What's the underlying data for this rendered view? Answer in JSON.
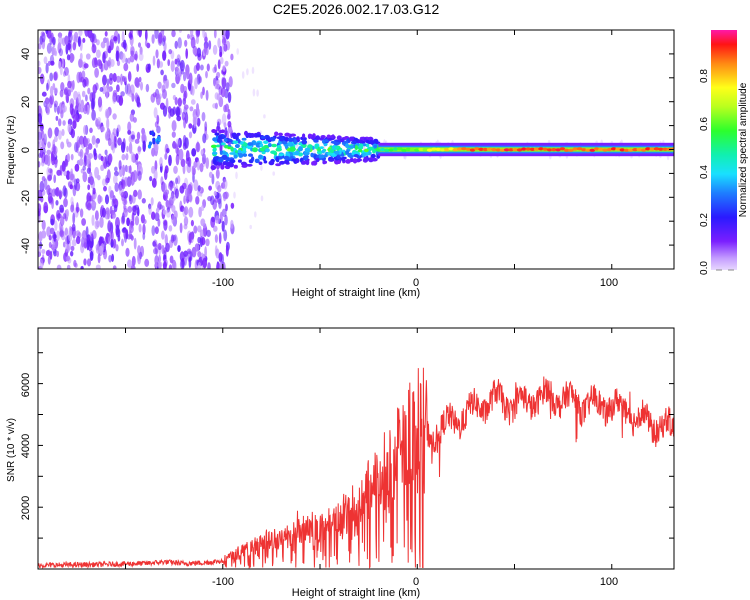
{
  "title": "C2E5.2026.002.17.03.G12",
  "chart_data": [
    {
      "type": "heatmap",
      "title": "C2E5.2026.002.17.03.G12",
      "xlabel": "Height of straight line (km)",
      "ylabel": "Frequency (Hz)",
      "xlim": [
        -195,
        132
      ],
      "ylim": [
        -50,
        50
      ],
      "x_ticks": [
        "-100",
        "0",
        "100"
      ],
      "y_ticks": [
        "-40",
        "-20",
        "0",
        "20",
        "40"
      ],
      "colorbar": {
        "label": "Normalized spectral amplitude",
        "range": [
          0,
          1
        ],
        "ticks": [
          "0.0",
          "0.2",
          "0.4",
          "0.6",
          "0.8"
        ]
      },
      "regions": [
        {
          "name": "diffuse noise",
          "x_range": [
            -195,
            -95
          ],
          "freq_spread_hz": 50,
          "amplitude": 0.1
        },
        {
          "name": "isolated tone",
          "x": -135,
          "freq_hz": 4,
          "amplitude": 0.4
        },
        {
          "name": "emerging signal",
          "x_range": [
            -105,
            -20
          ],
          "freq_spread_hz": 8,
          "amplitude": 0.45
        },
        {
          "name": "strong tone",
          "x_range": [
            -20,
            132
          ],
          "freq_hz": 0,
          "amplitude": 0.9
        }
      ]
    },
    {
      "type": "line",
      "xlabel": "Height of straight line (km)",
      "ylabel": "SNR (10 * v/v)",
      "xlim": [
        -195,
        132
      ],
      "ylim": [
        0,
        7800
      ],
      "x_ticks": [
        "-100",
        "0",
        "100"
      ],
      "y_ticks": [
        "2000",
        "4000",
        "6000"
      ],
      "color": "#ee3333",
      "series": [
        {
          "name": "SNR",
          "x": [
            -195,
            -180,
            -160,
            -140,
            -130,
            -120,
            -110,
            -100,
            -90,
            -80,
            -70,
            -60,
            -50,
            -40,
            -30,
            -20,
            -10,
            0,
            10,
            20,
            30,
            40,
            50,
            60,
            70,
            80,
            90,
            100,
            110,
            120,
            132
          ],
          "values": [
            120,
            130,
            150,
            180,
            230,
            180,
            200,
            260,
            500,
            700,
            850,
            1000,
            1150,
            1400,
            1900,
            2500,
            3300,
            4000,
            4500,
            4800,
            5200,
            5500,
            5300,
            5500,
            5600,
            5400,
            5300,
            5300,
            5000,
            4700,
            4500
          ]
        }
      ]
    }
  ]
}
